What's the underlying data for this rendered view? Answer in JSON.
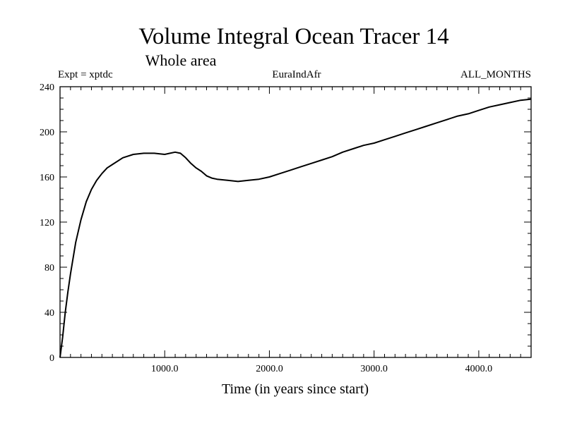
{
  "chart_data": {
    "type": "line",
    "title": "Volume Integral Ocean Tracer 14",
    "subtitle": "Whole area",
    "annotations": {
      "left": "Expt = xptdc",
      "center": "EuraIndAfr",
      "right": "ALL_MONTHS"
    },
    "xlabel": "Time (in years since start)",
    "ylabel": "",
    "xlim": [
      0,
      4500
    ],
    "ylim": [
      0,
      240
    ],
    "x_ticks": [
      1000,
      2000,
      3000,
      4000
    ],
    "x_tick_labels": [
      "1000.0",
      "2000.0",
      "3000.0",
      "4000.0"
    ],
    "y_ticks": [
      0,
      40,
      80,
      120,
      160,
      200,
      240
    ],
    "y_tick_labels": [
      "0",
      "40",
      "80",
      "120",
      "160",
      "200",
      "240"
    ],
    "grid": false,
    "series": [
      {
        "color": "#000000",
        "x": [
          0,
          25,
          50,
          75,
          100,
          150,
          200,
          250,
          300,
          350,
          400,
          450,
          500,
          600,
          700,
          800,
          900,
          1000,
          1050,
          1100,
          1150,
          1200,
          1250,
          1300,
          1350,
          1400,
          1450,
          1500,
          1600,
          1700,
          1800,
          1900,
          2000,
          2100,
          2200,
          2300,
          2400,
          2500,
          2600,
          2700,
          2800,
          2900,
          3000,
          3100,
          3200,
          3300,
          3400,
          3500,
          3600,
          3700,
          3800,
          3900,
          4000,
          4100,
          4200,
          4300,
          4400,
          4500
        ],
        "y": [
          0,
          18,
          40,
          58,
          74,
          102,
          122,
          138,
          149,
          157,
          163,
          168,
          171,
          177,
          180,
          181,
          181,
          180,
          181,
          182,
          181,
          177,
          172,
          168,
          165,
          161,
          159,
          158,
          157,
          156,
          157,
          158,
          160,
          163,
          166,
          169,
          172,
          175,
          178,
          182,
          185,
          188,
          190,
          193,
          196,
          199,
          202,
          205,
          208,
          211,
          214,
          216,
          219,
          222,
          224,
          226,
          228,
          229
        ]
      }
    ]
  }
}
